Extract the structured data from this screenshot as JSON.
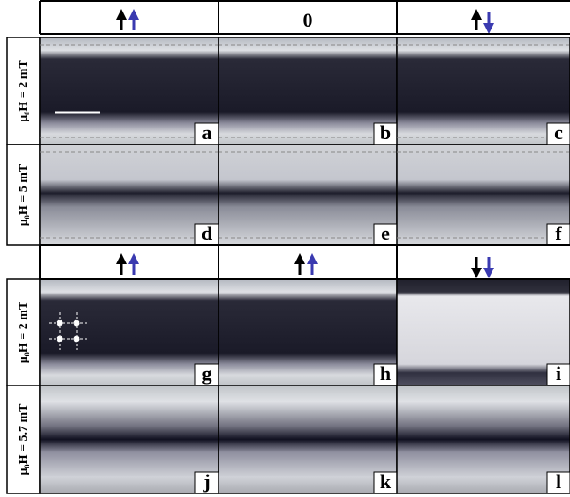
{
  "header": {
    "middle": "0"
  },
  "rows": [
    {
      "label": "μ₀H = 2 mT",
      "panels": [
        "a",
        "b",
        "c"
      ]
    },
    {
      "label": "μ₀H = 5 mT",
      "panels": [
        "d",
        "e",
        "f"
      ]
    },
    {
      "label": "μ₀H = 2 mT",
      "panels": [
        "g",
        "h",
        "i"
      ]
    },
    {
      "label": "μ₀H = 5.7 mT",
      "panels": [
        "j",
        "k",
        "l"
      ]
    }
  ]
}
